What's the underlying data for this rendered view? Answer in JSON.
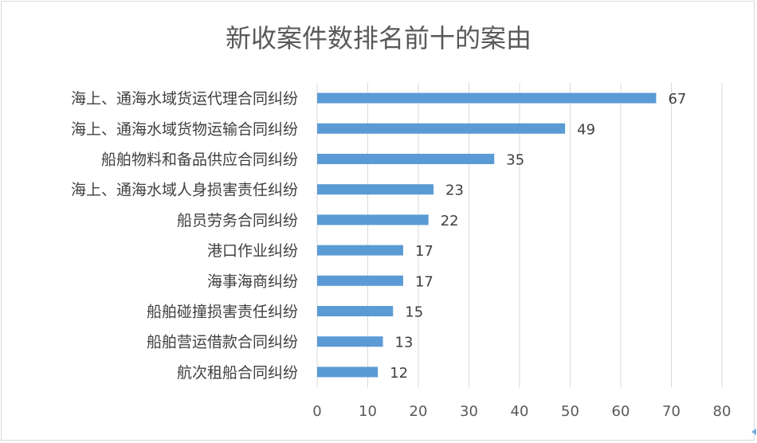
{
  "chart_data": {
    "type": "bar",
    "orientation": "horizontal",
    "title": "新收案件数排名前十的案由",
    "categories": [
      "海上、通海水域货运代理合同纠纷",
      "海上、通海水域货物运输合同纠纷",
      "船舶物料和备品供应合同纠纷",
      "海上、通海水域人身损害责任纠纷",
      "船员劳务合同纠纷",
      "港口作业纠纷",
      "海事海商纠纷",
      "船舶碰撞损害责任纠纷",
      "船舶营运借款合同纠纷",
      "航次租船合同纠纷"
    ],
    "values": [
      67,
      49,
      35,
      23,
      22,
      17,
      17,
      15,
      13,
      12
    ],
    "xlim": [
      0,
      80
    ],
    "xticks": [
      0,
      10,
      20,
      30,
      40,
      50,
      60,
      70,
      80
    ],
    "grid": "vertical",
    "legend": "none",
    "bar_color": "#5b9bd5",
    "data_labels": true
  }
}
